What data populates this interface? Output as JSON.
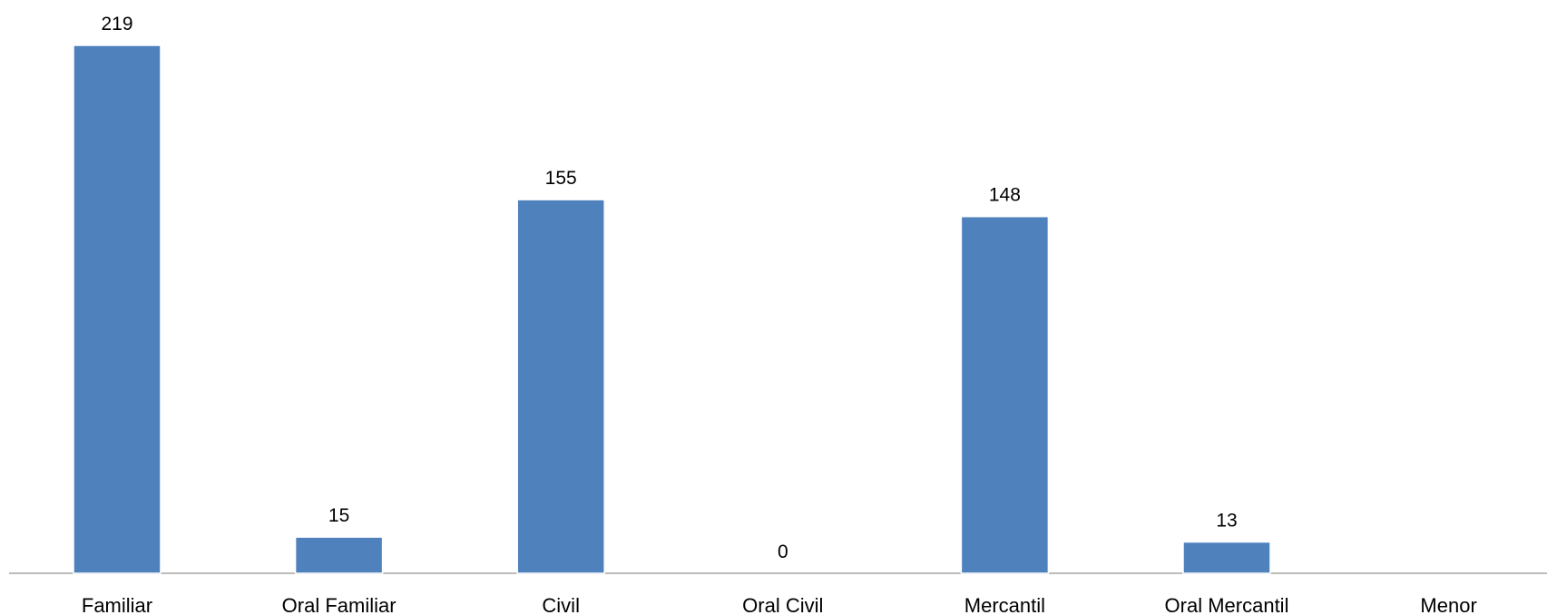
{
  "chart_data": {
    "type": "bar",
    "title": "",
    "xlabel": "",
    "ylabel": "",
    "categories": [
      "Familiar",
      "Oral Familiar",
      "Civil",
      "Oral Civil",
      "Mercantil",
      "Oral Mercantil",
      "Menor"
    ],
    "values": [
      219,
      15,
      155,
      0,
      148,
      13,
      null
    ],
    "value_labels": [
      "219",
      "15",
      "155",
      "0",
      "148",
      "13",
      ""
    ],
    "ylim": [
      0,
      219
    ],
    "grid": false,
    "legend": "none",
    "colors": {
      "bar": "#4f81bd",
      "axis": "#a6a6a6",
      "text": "#000000"
    }
  }
}
